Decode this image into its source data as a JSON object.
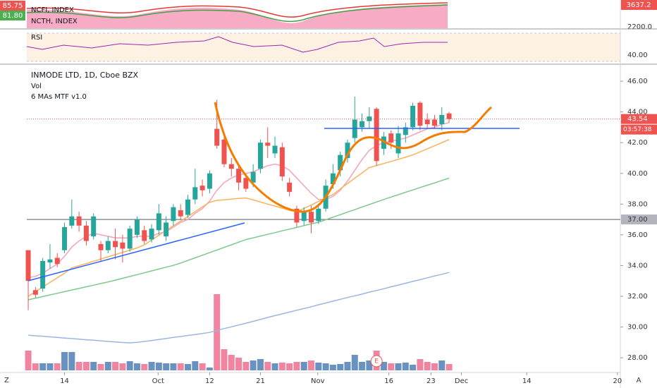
{
  "chart_data": {
    "type": "candlestick",
    "title": "INMODE LTD, 1D, Cboe BZX",
    "indicators": [
      "Vol",
      "6 MAs MTF v1.0"
    ],
    "open": [
      35.0,
      32.4,
      32.5,
      34.2,
      34.5,
      35.0,
      36.6,
      37.2,
      36.6,
      35.9,
      35.4,
      35.0,
      35.6,
      35.5,
      35.1,
      36.0,
      36.3,
      35.7,
      36.3,
      35.9,
      36.9,
      37.6,
      37.3,
      38.3,
      39.2,
      39.0,
      42.9,
      42.2,
      40.6,
      40.3,
      39.7,
      39.4,
      40.3,
      42.0,
      41.3,
      41.7,
      39.4,
      37.7,
      36.9,
      37.5,
      36.9,
      37.7,
      39.3,
      40.2,
      41.0,
      42.3,
      43.0,
      43.4,
      44.2,
      41.6,
      42.6,
      41.3,
      42.5,
      43.0,
      44.6,
      43.5,
      43.5,
      43.2,
      43.9
    ],
    "high": [
      35.0,
      32.6,
      34.5,
      35.4,
      34.8,
      36.8,
      38.3,
      37.5,
      36.9,
      37.4,
      35.6,
      35.9,
      36.4,
      36.0,
      36.6,
      37.2,
      36.6,
      36.7,
      38.0,
      37.2,
      38.0,
      38.0,
      38.6,
      40.3,
      39.6,
      40.2,
      44.8,
      42.4,
      41.0,
      40.6,
      40.0,
      40.6,
      42.2,
      43.0,
      42.4,
      42.0,
      39.7,
      37.9,
      37.8,
      37.9,
      38.0,
      39.6,
      40.6,
      41.4,
      42.2,
      45.0,
      43.9,
      44.3,
      44.3,
      42.7,
      42.8,
      43.1,
      43.3,
      44.6,
      44.7,
      43.9,
      43.8,
      44.3,
      44.0
    ],
    "low": [
      31.1,
      31.9,
      32.3,
      33.8,
      33.9,
      34.8,
      36.4,
      36.2,
      35.3,
      35.7,
      34.3,
      34.8,
      34.4,
      34.2,
      34.9,
      35.8,
      35.4,
      35.5,
      36.0,
      35.6,
      36.6,
      37.0,
      37.1,
      38.0,
      38.5,
      38.7,
      41.6,
      40.4,
      39.8,
      38.9,
      38.8,
      39.1,
      40.0,
      41.0,
      41.0,
      39.5,
      38.5,
      36.5,
      36.6,
      36.1,
      36.7,
      37.5,
      39.0,
      39.8,
      40.7,
      42.0,
      42.7,
      42.9,
      40.5,
      41.2,
      41.6,
      41.0,
      42.0,
      42.8,
      42.8,
      42.9,
      42.9,
      42.8,
      43.3
    ],
    "close": [
      33.0,
      32.1,
      34.3,
      34.4,
      34.1,
      36.5,
      37.2,
      36.6,
      35.6,
      37.2,
      35.0,
      35.6,
      35.2,
      35.1,
      36.4,
      37.0,
      35.6,
      36.4,
      37.4,
      36.8,
      37.8,
      37.2,
      38.3,
      39.1,
      38.9,
      40.0,
      41.8,
      40.6,
      40.3,
      39.4,
      39.0,
      40.1,
      42.0,
      41.8,
      41.8,
      39.8,
      38.8,
      36.8,
      37.5,
      36.8,
      37.7,
      39.2,
      40.0,
      41.2,
      42.0,
      43.5,
      43.4,
      43.7,
      40.8,
      42.4,
      42.0,
      42.6,
      43.0,
      44.4,
      43.1,
      43.2,
      43.1,
      43.8,
      43.54
    ],
    "volume": [
      280,
      100,
      100,
      100,
      100,
      260,
      260,
      120,
      120,
      120,
      90,
      120,
      120,
      100,
      130,
      100,
      90,
      120,
      110,
      100,
      100,
      100,
      90,
      130,
      100,
      40,
      1080,
      300,
      220,
      180,
      120,
      140,
      160,
      120,
      100,
      110,
      100,
      120,
      120,
      140,
      110,
      100,
      80,
      90,
      120,
      220,
      120,
      140,
      280,
      120,
      100,
      100,
      110,
      80,
      160,
      120,
      100,
      140,
      90
    ],
    "vlim": [
      0,
      1200
    ],
    "up_color": "#26a69a",
    "down_color": "#ef5350",
    "volume_up_color": "#4f7fb5",
    "volume_down_color": "#ee6e8f",
    "ma_series": [
      {
        "color": "#f4a3b8",
        "values": [
          33.2,
          33.3,
          33.5,
          33.8,
          34.1,
          34.6,
          35.2,
          35.6,
          35.9,
          36.1,
          36.0,
          35.9,
          35.8,
          35.8,
          35.8,
          35.9,
          35.9,
          35.9,
          36.1,
          36.2,
          36.5,
          36.8,
          37.0,
          37.4,
          37.7,
          38.2,
          38.9,
          39.4,
          39.7,
          39.9,
          40.0,
          40.1,
          40.3,
          40.5,
          40.6,
          40.5,
          40.2,
          39.7,
          39.2,
          38.7,
          38.3,
          38.3,
          38.5,
          38.9,
          39.5,
          40.2,
          40.9,
          41.5,
          41.8,
          42.0,
          42.1,
          42.2,
          42.3,
          42.5,
          42.7,
          42.9,
          43.0,
          43.2,
          43.3
        ]
      },
      {
        "color": "#f7b35c",
        "values": [
          32.0,
          32.3,
          32.6,
          32.9,
          33.2,
          33.5,
          33.85,
          33.99,
          34.13,
          34.28,
          34.42,
          34.57,
          34.71,
          34.86,
          35.0,
          35.15,
          35.35,
          35.66,
          35.97,
          36.28,
          36.59,
          36.89,
          37.2,
          37.51,
          37.82,
          38.12,
          38.24,
          38.28,
          38.32,
          38.37,
          38.4,
          38.27,
          38.14,
          38.0,
          37.87,
          37.74,
          37.6,
          37.5,
          37.72,
          37.94,
          38.17,
          38.4,
          38.62,
          38.99,
          39.34,
          39.69,
          40.03,
          40.38,
          40.51,
          40.64,
          40.78,
          40.91,
          41.05,
          41.2,
          41.4,
          41.6,
          41.8,
          42.0,
          42.2
        ]
      },
      {
        "color": "#7cc98a",
        "values": [
          31.77,
          31.88,
          31.98,
          32.09,
          32.19,
          32.3,
          32.41,
          32.51,
          32.62,
          32.72,
          32.83,
          32.93,
          33.05,
          33.17,
          33.29,
          33.41,
          33.53,
          33.65,
          33.77,
          33.89,
          34.01,
          34.16,
          34.33,
          34.5,
          34.67,
          34.84,
          35.01,
          35.18,
          35.35,
          35.52,
          35.69,
          35.8,
          35.92,
          36.03,
          36.14,
          36.26,
          36.37,
          36.48,
          36.6,
          36.71,
          36.82,
          36.98,
          37.15,
          37.31,
          37.48,
          37.64,
          37.81,
          37.97,
          38.14,
          38.3,
          38.46,
          38.61,
          38.77,
          38.92,
          39.08,
          39.23,
          39.38,
          39.54,
          39.69
        ]
      },
      {
        "color": "#9bb7e0",
        "values": [
          29.47,
          29.43,
          29.4,
          29.36,
          29.32,
          29.28,
          29.25,
          29.21,
          29.17,
          29.14,
          29.1,
          29.06,
          29.03,
          28.99,
          28.97,
          29.0,
          29.06,
          29.12,
          29.19,
          29.25,
          29.32,
          29.38,
          29.45,
          29.51,
          29.58,
          29.65,
          29.78,
          29.9,
          30.01,
          30.13,
          30.25,
          30.37,
          30.49,
          30.62,
          30.74,
          30.85,
          30.97,
          31.09,
          31.2,
          31.32,
          31.45,
          31.56,
          31.68,
          31.8,
          31.92,
          32.03,
          32.14,
          32.27,
          32.38,
          32.49,
          32.62,
          32.73,
          32.85,
          32.97,
          33.08,
          33.2,
          33.32,
          33.43,
          33.55
        ]
      }
    ],
    "ylim": [
      27.04,
      47.06
    ],
    "yticks": [
      {
        "value": 46,
        "label": "46.00"
      },
      {
        "value": 44,
        "label": "44.00"
      },
      {
        "value": 42,
        "label": "42.00"
      },
      {
        "value": 40,
        "label": "40.00"
      },
      {
        "value": 38,
        "label": "38.00"
      },
      {
        "value": 36,
        "label": "36.00"
      },
      {
        "value": 34,
        "label": "34.00"
      },
      {
        "value": 32,
        "label": "32.00"
      },
      {
        "value": 30,
        "label": "30.00"
      },
      {
        "value": 28,
        "label": "28.00"
      }
    ],
    "xlim": [
      -0.2,
      81.6
    ],
    "xticks": [
      {
        "value": 5.0,
        "label": "14"
      },
      {
        "value": 17.9,
        "label": "Oct"
      },
      {
        "value": 25.0,
        "label": "12"
      },
      {
        "value": 32.0,
        "label": "21"
      },
      {
        "value": 39.9,
        "label": "Nov"
      },
      {
        "value": 49.7,
        "label": "16"
      },
      {
        "value": 55.5,
        "label": "23"
      },
      {
        "value": 59.7,
        "label": "Dec"
      },
      {
        "value": 68.7,
        "label": "14"
      },
      {
        "value": 81.2,
        "label": "20"
      }
    ],
    "last_price": 43.54,
    "countdown": "03:57:38",
    "hline": {
      "value": 37,
      "label": "37.00"
    },
    "event_marker": "E"
  },
  "top_panel": {
    "names": [
      "NCFI, INDEX",
      "NCTH, INDEX"
    ],
    "left_values": [
      85.75,
      {
        "value": 81.8,
        "label": "81.80"
      }
    ],
    "right_value": 3637.2,
    "right_tick": {
      "value": 2200,
      "label": "2200.0"
    }
  },
  "rsi_panel": {
    "name": "RSI",
    "tick": {
      "value": 40,
      "label": "40.00"
    }
  },
  "footer": {
    "left": "Z",
    "right": "A"
  }
}
